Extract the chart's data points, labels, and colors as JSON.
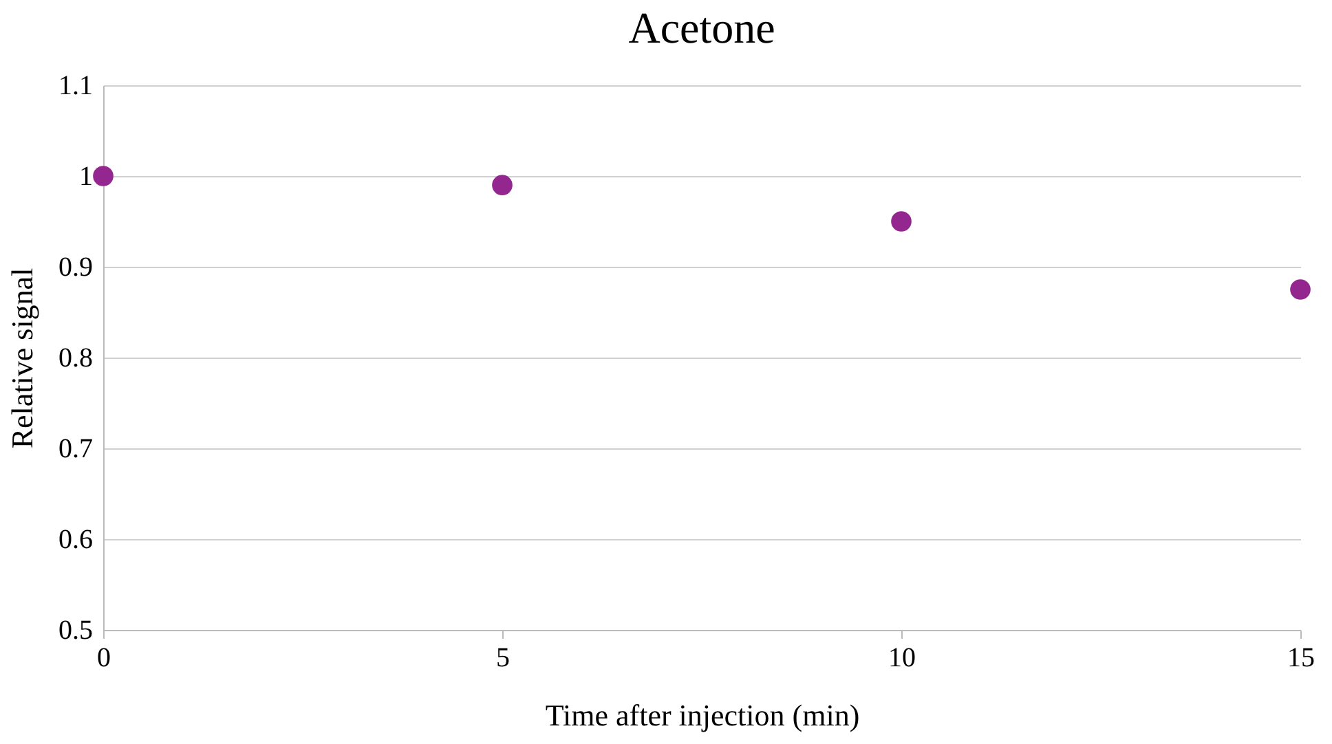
{
  "chart_data": {
    "type": "scatter",
    "title": "Acetone",
    "xlabel": "Time after injection (min)",
    "ylabel": "Relative signal",
    "x": [
      0,
      5,
      10,
      15
    ],
    "series": [
      {
        "color": "#93278f",
        "values": [
          1.0,
          0.99,
          0.95,
          0.875
        ]
      }
    ],
    "xlim": [
      0,
      15
    ],
    "xticks": [
      0,
      5,
      10,
      15
    ],
    "ylim": [
      0.5,
      1.1
    ],
    "yticks": [
      0.5,
      0.6,
      0.7,
      0.8,
      0.9,
      {
        "value": 1,
        "label": "1"
      },
      1.1
    ],
    "grid": "y",
    "marker": "circle",
    "legend": false
  }
}
